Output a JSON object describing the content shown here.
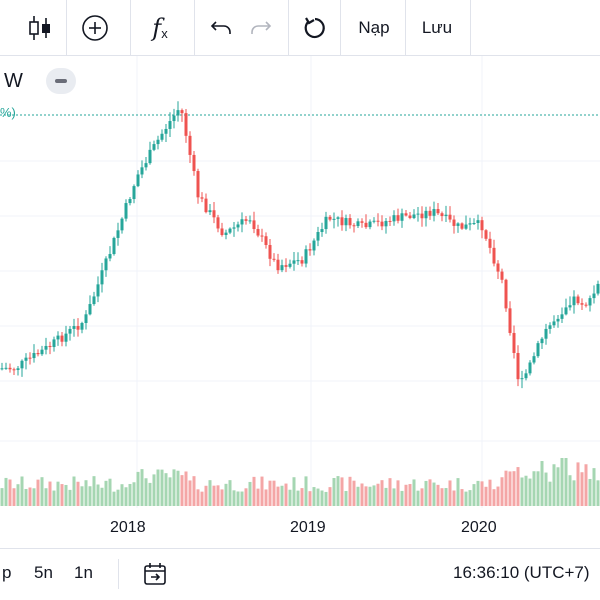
{
  "toolbar": {
    "candles_icon": "candles-icon",
    "add_icon": "add-icon",
    "fx_label": "f",
    "fx_sub": "x",
    "undo_icon": "undo-icon",
    "redo_icon": "redo-icon",
    "reset_icon": "reset-icon",
    "load_label": "Nạp",
    "save_label": "Lưu"
  },
  "symbol": {
    "label": "W"
  },
  "price_line": {
    "label": "%)",
    "color": "#26a69a"
  },
  "colors": {
    "up": "#26a69a",
    "down": "#ef5350",
    "up_vol": "#a5d6b2",
    "down_vol": "#f4a6a6",
    "grid": "#f0f3fa"
  },
  "bottom": {
    "range_partial": "p",
    "range_5y": "5n",
    "range_1y": "1n",
    "goto_icon": "calendar-goto-icon",
    "time": "16:36:10 (UTC+7)"
  },
  "chart_data": {
    "type": "candlestick",
    "x_tick_labels": [
      "2018",
      "2019",
      "2020"
    ],
    "trend_points": [
      {
        "t": 2017.3,
        "v": 0.18
      },
      {
        "t": 2017.5,
        "v": 0.25
      },
      {
        "t": 2017.7,
        "v": 0.33
      },
      {
        "t": 2017.85,
        "v": 0.55
      },
      {
        "t": 2018.0,
        "v": 0.78
      },
      {
        "t": 2018.15,
        "v": 0.92
      },
      {
        "t": 2018.25,
        "v": 1.0
      },
      {
        "t": 2018.35,
        "v": 0.72
      },
      {
        "t": 2018.5,
        "v": 0.6
      },
      {
        "t": 2018.65,
        "v": 0.65
      },
      {
        "t": 2018.8,
        "v": 0.5
      },
      {
        "t": 2018.95,
        "v": 0.52
      },
      {
        "t": 2019.1,
        "v": 0.65
      },
      {
        "t": 2019.3,
        "v": 0.62
      },
      {
        "t": 2019.5,
        "v": 0.65
      },
      {
        "t": 2019.7,
        "v": 0.67
      },
      {
        "t": 2019.85,
        "v": 0.62
      },
      {
        "t": 2019.98,
        "v": 0.63
      },
      {
        "t": 2020.1,
        "v": 0.45
      },
      {
        "t": 2020.2,
        "v": 0.12
      },
      {
        "t": 2020.35,
        "v": 0.3
      },
      {
        "t": 2020.5,
        "v": 0.4
      },
      {
        "t": 2020.6,
        "v": 0.38
      },
      {
        "t": 2020.7,
        "v": 0.5
      }
    ],
    "volume_level": "low-moderate with spike near 2020.45"
  }
}
